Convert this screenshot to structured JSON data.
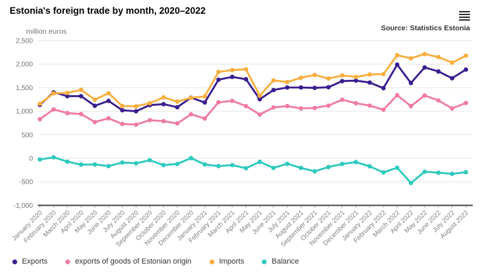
{
  "header": {
    "title": "Estonia's foreign trade by month, 2020–2022",
    "source": "Source: Statistics Estonia",
    "menu_icon": "hamburger-icon"
  },
  "chart_data": {
    "type": "line",
    "title": "Estonia's foreign trade by month, 2020–2022",
    "unit_label": "million euros",
    "xlabel": "",
    "ylabel": "million euros",
    "ylim": [
      -1000,
      2500
    ],
    "grid": true,
    "legend_position": "bottom",
    "yticks": [
      {
        "v": 2500,
        "label": "2,500"
      },
      {
        "v": 2000,
        "label": "2,000"
      },
      {
        "v": 1500,
        "label": "1,500"
      },
      {
        "v": 1000,
        "label": "1,000"
      },
      {
        "v": 500,
        "label": "500"
      },
      {
        "v": 0,
        "label": "0"
      },
      {
        "v": -500,
        "label": "-500"
      },
      {
        "v": -1000,
        "label": "-1,000"
      }
    ],
    "categories": [
      "January 2020",
      "February 2020",
      "March 2020",
      "April 2020",
      "May 2020",
      "June 2020",
      "July 2020",
      "August 2020",
      "September 2020",
      "October 2020",
      "November 2020",
      "December 2020",
      "January 2021",
      "February 2021",
      "March 2021",
      "April 2021",
      "May 2021",
      "June 2021",
      "July 2021",
      "August 2021",
      "September 2021",
      "October 2021",
      "November 2021",
      "December 2021",
      "January 2022",
      "February 2022",
      "March 2022",
      "April 2022",
      "May 2022",
      "June 2022",
      "July 2022",
      "August 2022"
    ],
    "series": [
      {
        "name": "Exports",
        "color": "#3a1e8f",
        "values": [
          1135,
          1400,
          1320,
          1320,
          1115,
          1220,
          1020,
          1000,
          1130,
          1150,
          1085,
          1290,
          1185,
          1670,
          1730,
          1680,
          1255,
          1450,
          1505,
          1505,
          1495,
          1510,
          1640,
          1650,
          1610,
          1490,
          1990,
          1600,
          1930,
          1845,
          1700,
          1885
        ]
      },
      {
        "name": "exports of goods of Estonian origin",
        "color": "#f07ba3",
        "values": [
          830,
          1040,
          960,
          940,
          770,
          850,
          730,
          715,
          810,
          790,
          740,
          935,
          845,
          1190,
          1220,
          1110,
          930,
          1080,
          1110,
          1060,
          1070,
          1120,
          1245,
          1170,
          1120,
          1030,
          1340,
          1110,
          1335,
          1230,
          1060,
          1175
        ]
      },
      {
        "name": "Imports",
        "color": "#f9af3f",
        "values": [
          1160,
          1380,
          1390,
          1455,
          1245,
          1385,
          1110,
          1105,
          1170,
          1295,
          1205,
          1285,
          1315,
          1835,
          1875,
          1890,
          1330,
          1655,
          1620,
          1710,
          1770,
          1695,
          1760,
          1730,
          1780,
          1790,
          2190,
          2125,
          2215,
          2150,
          2030,
          2180
        ]
      },
      {
        "name": "Balance",
        "color": "#2fc9bd",
        "values": [
          -25,
          20,
          -70,
          -135,
          -130,
          -165,
          -90,
          -105,
          -40,
          -145,
          -120,
          5,
          -130,
          -165,
          -145,
          -210,
          -75,
          -205,
          -115,
          -205,
          -275,
          -185,
          -120,
          -80,
          -170,
          -300,
          -200,
          -525,
          -285,
          -305,
          -330,
          -295
        ]
      }
    ]
  }
}
